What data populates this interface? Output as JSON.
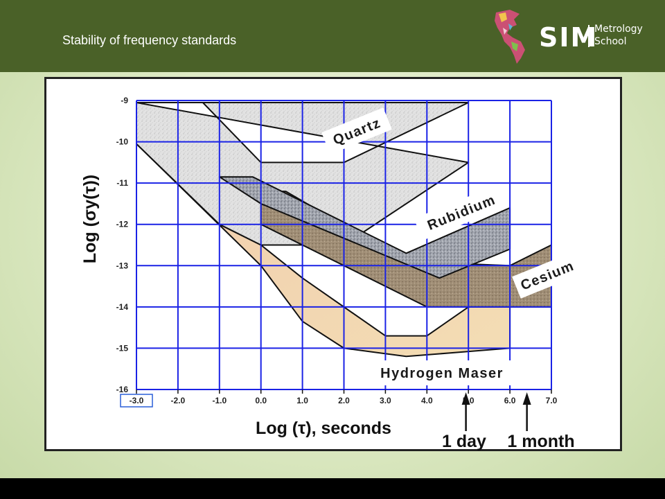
{
  "header": {
    "title": "Stability of frequency standards",
    "logo": {
      "text": "SIM",
      "sub1": "Metrology",
      "sub2": "School",
      "icon": "americas-map-icon"
    }
  },
  "colors": {
    "header_bg": "#4a6128",
    "grid": "#1a22e6",
    "quartz_fill": "#dcdcdc",
    "rubidium_fill": "#9a9ea8",
    "cesium_fill": "#9c8a72",
    "hmaser_fill": "#f2d8aa",
    "hmaser_pink": "#f4b5b8",
    "outline": "#111111"
  },
  "chart_data": {
    "type": "area",
    "xlabel": "Log (τ), seconds",
    "ylabel": "Log (σy(τ))",
    "xlim": [
      -3,
      7
    ],
    "ylim": [
      -16,
      -9
    ],
    "x_ticks": [
      "-3.0",
      "-2.0",
      "-1.0",
      "0.0",
      "1.0",
      "2.0",
      "3.0",
      "4.0",
      "5.0",
      "6.0",
      "7.0"
    ],
    "y_ticks": [
      "-9",
      "-10",
      "-11",
      "-12",
      "-13",
      "-14",
      "-15",
      "-16"
    ],
    "grid": true,
    "series": [
      {
        "name": "Quartz",
        "polygon": [
          [
            -3,
            -9.05
          ],
          [
            -1.4,
            -9.05
          ],
          [
            0,
            -10.5
          ],
          [
            2,
            -10.5
          ],
          [
            5,
            -9.05
          ],
          [
            -3,
            -9.05
          ],
          [
            -3,
            -10.05
          ],
          [
            -1,
            -12
          ],
          [
            0,
            -12.5
          ],
          [
            2,
            -12.5
          ],
          [
            5,
            -10.5
          ]
        ]
      },
      {
        "name": "Rubidium",
        "polygon": [
          [
            -1,
            -10.85
          ],
          [
            -0.2,
            -10.85
          ],
          [
            3.5,
            -12.7
          ],
          [
            6,
            -11.6
          ],
          [
            6,
            -12.6
          ],
          [
            4.3,
            -13.3
          ],
          [
            0,
            -11.5
          ],
          [
            -1,
            -10.85
          ]
        ]
      },
      {
        "name": "Cesium",
        "polygon": [
          [
            0,
            -11.2
          ],
          [
            0.6,
            -11.2
          ],
          [
            3.5,
            -12.9
          ],
          [
            6,
            -13
          ],
          [
            7,
            -12.5
          ],
          [
            7,
            -14
          ],
          [
            4,
            -14
          ],
          [
            0,
            -12
          ],
          [
            0,
            -11.2
          ]
        ]
      },
      {
        "name": "Hydrogen Maser",
        "polygon": [
          [
            -3,
            -9.6
          ],
          [
            -1,
            -12
          ],
          [
            0,
            -12.5
          ],
          [
            1,
            -13.3
          ],
          [
            3,
            -14.7
          ],
          [
            4,
            -14.7
          ],
          [
            5,
            -14.0
          ],
          [
            6,
            -14.0
          ],
          [
            6,
            -15.0
          ],
          [
            3.5,
            -15.2
          ],
          [
            2,
            -15.0
          ],
          [
            1,
            -14.35
          ],
          [
            0,
            -13.0
          ],
          [
            -3,
            -10.05
          ],
          [
            -3,
            -9.6
          ]
        ]
      }
    ],
    "annotations": [
      {
        "text": "1 day",
        "x": 4.94
      },
      {
        "text": "1 month",
        "x": 6.41
      }
    ]
  }
}
